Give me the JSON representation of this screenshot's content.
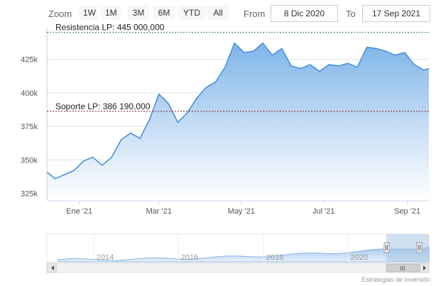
{
  "toolbar": {
    "zoom_label": "Zoom",
    "buttons": [
      "1W",
      "1M",
      "3M",
      "6M",
      "YTD",
      "All"
    ],
    "from_label": "From",
    "from_value": "8 Dic 2020",
    "to_label": "To",
    "to_value": "17 Sep 2021"
  },
  "credit": "Estrategias de Inversión",
  "colors": {
    "line": "#4a90d9",
    "area_top": "#7eb4e9",
    "area_bottom": "#ffffff",
    "resistance_line": "#2e7d32",
    "support_line": "#8b1a1a",
    "navigator_handle": "#a8c7e6"
  },
  "navigator": {
    "year_labels": [
      "2014",
      "2016",
      "2018",
      "2020"
    ],
    "scroll_grip": "III"
  },
  "chart_data": {
    "type": "area",
    "title": "",
    "xlabel": "",
    "ylabel": "",
    "x_ticks": [
      "Ene '21",
      "Mar '21",
      "May '21",
      "Jul '21",
      "Sep '21"
    ],
    "y_ticks": [
      "325k",
      "350k",
      "375k",
      "400k",
      "425k"
    ],
    "ylim": [
      320000,
      448000
    ],
    "x": [
      "2020-12-08",
      "2020-12-14",
      "2020-12-21",
      "2020-12-28",
      "2021-01-04",
      "2021-01-11",
      "2021-01-18",
      "2021-01-25",
      "2021-02-01",
      "2021-02-08",
      "2021-02-15",
      "2021-02-22",
      "2021-03-01",
      "2021-03-08",
      "2021-03-15",
      "2021-03-22",
      "2021-03-29",
      "2021-04-05",
      "2021-04-12",
      "2021-04-19",
      "2021-04-26",
      "2021-05-03",
      "2021-05-10",
      "2021-05-17",
      "2021-05-24",
      "2021-05-31",
      "2021-06-07",
      "2021-06-14",
      "2021-06-21",
      "2021-06-28",
      "2021-07-05",
      "2021-07-12",
      "2021-07-19",
      "2021-07-26",
      "2021-08-02",
      "2021-08-09",
      "2021-08-16",
      "2021-08-23",
      "2021-08-30",
      "2021-09-06",
      "2021-09-13",
      "2021-09-17"
    ],
    "series": [
      {
        "values": [
          341000,
          336000,
          339000,
          342000,
          349000,
          352000,
          346000,
          352000,
          365000,
          370000,
          366000,
          380000,
          399000,
          392000,
          378000,
          385000,
          396000,
          404000,
          408000,
          419000,
          437000,
          430000,
          431000,
          437000,
          428000,
          433000,
          420000,
          418000,
          421000,
          416000,
          421000,
          420000,
          422000,
          419000,
          434000,
          433000,
          431000,
          428000,
          430000,
          421000,
          417000,
          418000
        ]
      }
    ],
    "reference_lines": [
      {
        "label": "Resistencia LP: 445 000,000",
        "value": 445000
      },
      {
        "label": "Soporte LP: 386 190,000",
        "value": 386190
      }
    ]
  }
}
